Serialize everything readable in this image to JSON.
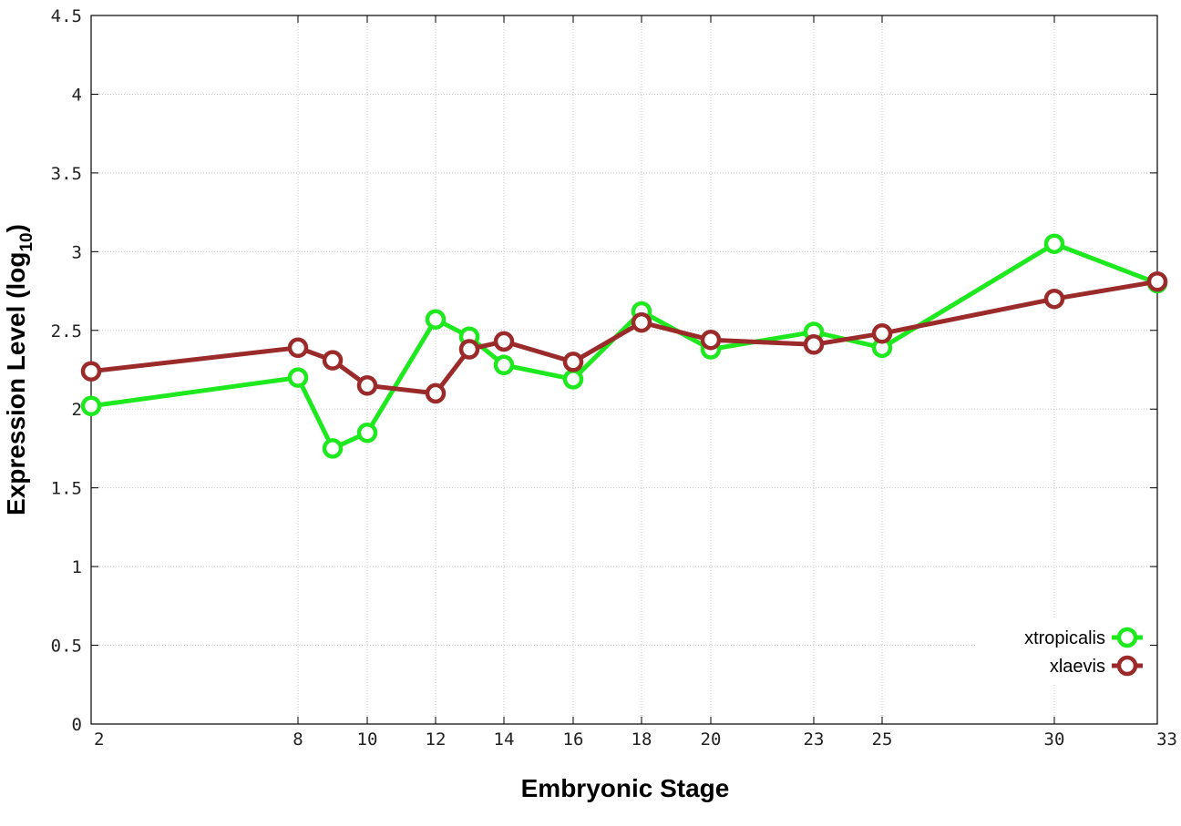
{
  "chart_data": {
    "type": "line",
    "xlabel": "Embryonic Stage",
    "ylabel": "Expression Level (log",
    "ylabel_sub": "10",
    "ylabel_close": ")",
    "x_ticks": [
      "2",
      "8",
      "10",
      "12",
      "14",
      "16",
      "18",
      "20",
      "23",
      "25",
      "30",
      "33"
    ],
    "y_ticks": [
      "0",
      "0.5",
      "1",
      "1.5",
      "2",
      "2.5",
      "3",
      "3.5",
      "4",
      "4.5"
    ],
    "ylim": [
      0,
      4.5
    ],
    "x_scale": "log-like (ticks at stages 2, 8, 10, 12, 14, 16, 18, 20, 23, 25, 30, 33)",
    "grid": true,
    "legend_position": "bottom-right",
    "series": [
      {
        "name": "xtropicalis",
        "color": "#1ee81e",
        "points": [
          {
            "x": 2,
            "y": 2.02
          },
          {
            "x": 8,
            "y": 2.2
          },
          {
            "x": 9,
            "y": 1.75
          },
          {
            "x": 10,
            "y": 1.85
          },
          {
            "x": 12,
            "y": 2.57
          },
          {
            "x": 13,
            "y": 2.46
          },
          {
            "x": 14,
            "y": 2.28
          },
          {
            "x": 16,
            "y": 2.19
          },
          {
            "x": 18,
            "y": 2.62
          },
          {
            "x": 20,
            "y": 2.38
          },
          {
            "x": 23,
            "y": 2.49
          },
          {
            "x": 25,
            "y": 2.39
          },
          {
            "x": 30,
            "y": 3.05
          },
          {
            "x": 33,
            "y": 2.8
          }
        ]
      },
      {
        "name": "xlaevis",
        "color": "#9b2a2a",
        "points": [
          {
            "x": 2,
            "y": 2.24
          },
          {
            "x": 8,
            "y": 2.39
          },
          {
            "x": 9,
            "y": 2.31
          },
          {
            "x": 10,
            "y": 2.15
          },
          {
            "x": 12,
            "y": 2.1
          },
          {
            "x": 13,
            "y": 2.38
          },
          {
            "x": 14,
            "y": 2.43
          },
          {
            "x": 16,
            "y": 2.3
          },
          {
            "x": 18,
            "y": 2.55
          },
          {
            "x": 20,
            "y": 2.44
          },
          {
            "x": 23,
            "y": 2.41
          },
          {
            "x": 25,
            "y": 2.48
          },
          {
            "x": 30,
            "y": 2.7
          },
          {
            "x": 33,
            "y": 2.81
          }
        ]
      }
    ]
  }
}
